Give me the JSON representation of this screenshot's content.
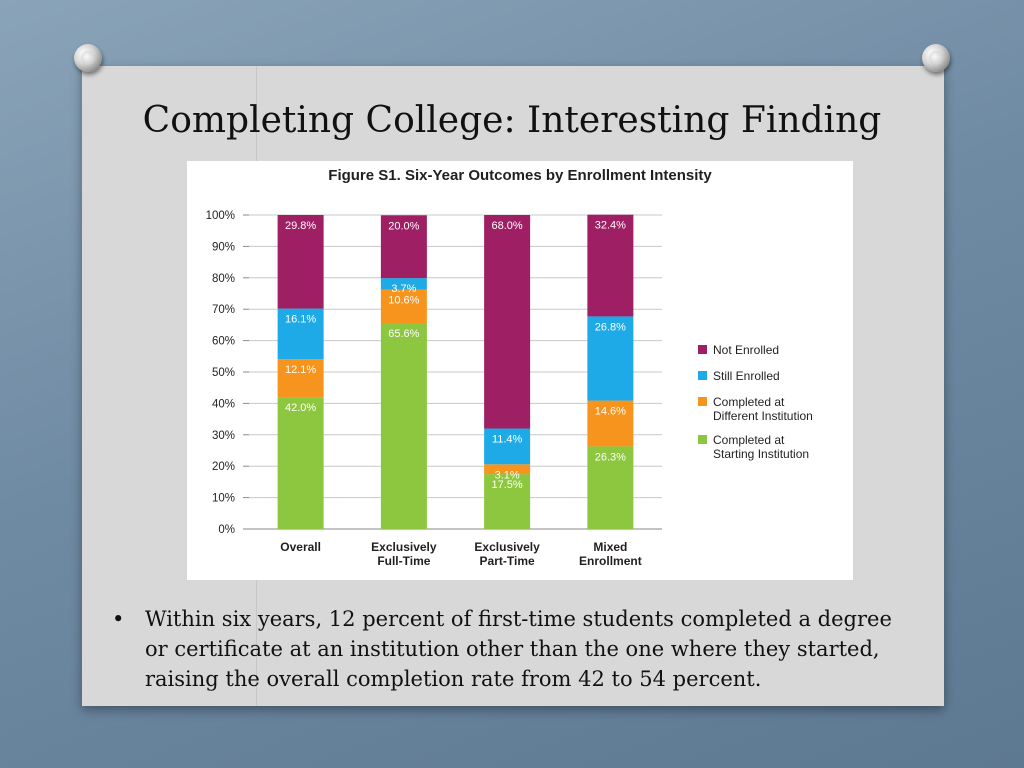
{
  "slide": {
    "title": "Completing College: Interesting Finding",
    "bullets": [
      "Within six years, 12 percent of first-time students completed a degree or certificate at an institution other than the one where they started, raising the overall completion rate from 42 to 54 percent."
    ]
  },
  "chart_data": {
    "type": "bar",
    "stacked": true,
    "title": "Figure S1. Six-Year Outcomes by Enrollment Intensity",
    "xlabel": "",
    "ylabel": "",
    "ylim": [
      0,
      100
    ],
    "yticks": [
      "0%",
      "10%",
      "20%",
      "30%",
      "40%",
      "50%",
      "60%",
      "70%",
      "80%",
      "90%",
      "100%"
    ],
    "grid": true,
    "legend_position": "right",
    "categories": [
      [
        "Overall"
      ],
      [
        "Exclusively",
        "Full-Time"
      ],
      [
        "Exclusively",
        "Part-Time"
      ],
      [
        "Mixed",
        "Enrollment"
      ]
    ],
    "series": [
      {
        "name": "Completed at Starting Institution",
        "legend_lines": [
          "Completed at",
          "Starting Institution"
        ],
        "color": "#8dc63f",
        "values": [
          42.0,
          65.6,
          17.5,
          26.3
        ],
        "labels": [
          "42.0%",
          "65.6%",
          "17.5%",
          "26.3%"
        ]
      },
      {
        "name": "Completed at Different Institution",
        "legend_lines": [
          "Completed at",
          "Different Institution"
        ],
        "color": "#f7941d",
        "values": [
          12.1,
          10.6,
          3.1,
          14.6
        ],
        "labels": [
          "12.1%",
          "10.6%",
          "3.1%",
          "14.6%"
        ]
      },
      {
        "name": "Still Enrolled",
        "legend_lines": [
          "Still Enrolled"
        ],
        "color": "#1eaae7",
        "values": [
          16.1,
          3.7,
          11.4,
          26.8
        ],
        "labels": [
          "16.1%",
          "3.7%",
          "11.4%",
          "26.8%"
        ]
      },
      {
        "name": "Not Enrolled",
        "legend_lines": [
          "Not Enrolled"
        ],
        "color": "#9e1f63",
        "values": [
          29.8,
          20.0,
          68.0,
          32.4
        ],
        "labels": [
          "29.8%",
          "20.0%",
          "68.0%",
          "32.4%"
        ]
      }
    ],
    "legend_order": [
      3,
      2,
      1,
      0
    ]
  }
}
